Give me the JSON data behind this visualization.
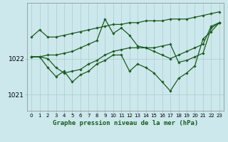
{
  "title": "Graphe pression niveau de la mer (hPa)",
  "background_color": "#cce8ec",
  "grid_color": "#aacccc",
  "line_color": "#1a5c1a",
  "marker_color": "#1a5c1a",
  "xlim": [
    -0.5,
    23.5
  ],
  "ylim": [
    1020.55,
    1023.55
  ],
  "yticks": [
    1021,
    1022
  ],
  "xticks": [
    0,
    1,
    2,
    3,
    4,
    5,
    6,
    7,
    8,
    9,
    10,
    11,
    12,
    13,
    14,
    15,
    16,
    17,
    18,
    19,
    20,
    21,
    22,
    23
  ],
  "series": [
    [
      1022.6,
      1022.8,
      1022.6,
      1022.6,
      1022.65,
      1022.7,
      1022.75,
      1022.8,
      1022.85,
      1022.9,
      1022.95,
      1022.95,
      1023.0,
      1023.0,
      1023.05,
      1023.05,
      1023.05,
      1023.1,
      1023.1,
      1023.1,
      1023.15,
      1023.2,
      1023.25,
      1023.3
    ],
    [
      1022.05,
      1022.05,
      1022.1,
      1022.1,
      1022.15,
      1022.2,
      1022.3,
      1022.4,
      1022.5,
      1023.1,
      1022.7,
      1022.85,
      1022.65,
      1022.35,
      1022.3,
      1022.2,
      1022.1,
      1022.0,
      1022.1,
      1022.2,
      1022.3,
      1022.4,
      1022.9,
      1023.0
    ],
    [
      1022.05,
      1022.05,
      1022.0,
      1021.75,
      1021.6,
      1021.65,
      1021.7,
      1021.85,
      1021.95,
      1022.1,
      1022.2,
      1022.25,
      1022.3,
      1022.3,
      1022.3,
      1022.3,
      1022.35,
      1022.4,
      1021.9,
      1021.95,
      1022.05,
      1022.15,
      1022.85,
      1023.0
    ],
    [
      1022.05,
      1022.05,
      1021.75,
      1021.5,
      1021.65,
      1021.35,
      1021.55,
      1021.65,
      1021.85,
      1021.95,
      1022.1,
      1022.1,
      1021.65,
      1021.85,
      1021.75,
      1021.6,
      1021.35,
      1021.1,
      1021.45,
      1021.6,
      1021.8,
      1022.55,
      1022.75,
      1023.0
    ]
  ]
}
